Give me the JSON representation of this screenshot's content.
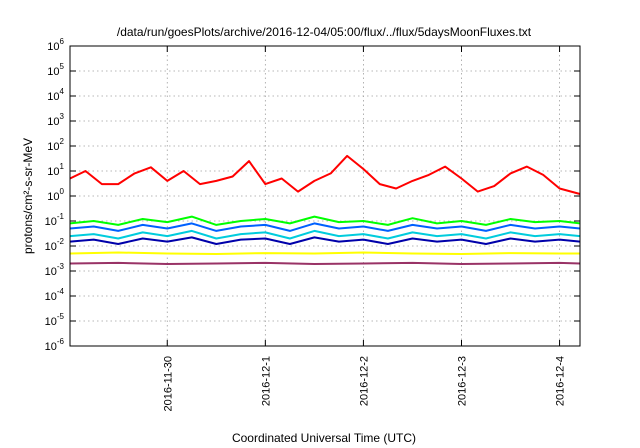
{
  "chart_data": {
    "type": "line",
    "title": "/data/run/goesPlots/archive/2016-12-04/05:00/flux/../flux/5daysMoonFluxes.txt",
    "xlabel": "Coordinated Universal Time (UTC)",
    "ylabel": "protons/cm²-s-sr-MeV",
    "y_scale": "log",
    "ylim": [
      1e-06,
      1000000.0
    ],
    "y_ticks": [
      {
        "value": 1e-06,
        "base": "10",
        "exp": "-6"
      },
      {
        "value": 1e-05,
        "base": "10",
        "exp": "-5"
      },
      {
        "value": 0.0001,
        "base": "10",
        "exp": "-4"
      },
      {
        "value": 0.001,
        "base": "10",
        "exp": "-3"
      },
      {
        "value": 0.01,
        "base": "10",
        "exp": "-2"
      },
      {
        "value": 0.1,
        "base": "10",
        "exp": "-1"
      },
      {
        "value": 1,
        "base": "10",
        "exp": "0"
      },
      {
        "value": 10,
        "base": "10",
        "exp": "1"
      },
      {
        "value": 100,
        "base": "10",
        "exp": "2"
      },
      {
        "value": 1000,
        "base": "10",
        "exp": "3"
      },
      {
        "value": 10000,
        "base": "10",
        "exp": "4"
      },
      {
        "value": 100000,
        "base": "10",
        "exp": "5"
      },
      {
        "value": 1000000,
        "base": "10",
        "exp": "6"
      }
    ],
    "xlim": [
      "2016-11-29T00:12",
      "2016-12-04T05:00"
    ],
    "x_ticks": [
      {
        "value": "2016-11-30T00:00",
        "label": "2016-11-30"
      },
      {
        "value": "2016-12-01T00:00",
        "label": "2016-12-1"
      },
      {
        "value": "2016-12-02T00:00",
        "label": "2016-12-2"
      },
      {
        "value": "2016-12-03T00:00",
        "label": "2016-12-3"
      },
      {
        "value": "2016-12-04T00:00",
        "label": "2016-12-4"
      }
    ],
    "grid": true,
    "legend": "none",
    "series": [
      {
        "color": "#ff0000",
        "x": [
          "2016-11-29T00:12",
          "2016-11-29T04:00",
          "2016-11-29T08:00",
          "2016-11-29T12:00",
          "2016-11-29T16:00",
          "2016-11-29T20:00",
          "2016-11-30T00:00",
          "2016-11-30T04:00",
          "2016-11-30T08:00",
          "2016-11-30T12:00",
          "2016-11-30T16:00",
          "2016-11-30T20:00",
          "2016-12-01T00:00",
          "2016-12-01T04:00",
          "2016-12-01T08:00",
          "2016-12-01T12:00",
          "2016-12-01T16:00",
          "2016-12-01T20:00",
          "2016-12-02T00:00",
          "2016-12-02T04:00",
          "2016-12-02T08:00",
          "2016-12-02T12:00",
          "2016-12-02T16:00",
          "2016-12-02T20:00",
          "2016-12-03T00:00",
          "2016-12-03T04:00",
          "2016-12-03T08:00",
          "2016-12-03T12:00",
          "2016-12-03T16:00",
          "2016-12-03T20:00",
          "2016-12-04T00:00",
          "2016-12-04T05:00"
        ],
        "y": [
          5,
          10,
          3,
          3,
          8,
          14,
          4,
          10,
          3,
          4,
          6,
          25,
          3,
          5,
          1.5,
          4,
          8,
          40,
          12,
          3,
          2,
          4,
          7,
          15,
          5,
          1.5,
          2.5,
          8,
          15,
          7,
          2,
          1.2
        ]
      },
      {
        "color": "#00ff00",
        "x": [
          "2016-11-29T00:12",
          "2016-11-29T06:00",
          "2016-11-29T12:00",
          "2016-11-29T18:00",
          "2016-11-30T00:00",
          "2016-11-30T06:00",
          "2016-11-30T12:00",
          "2016-11-30T18:00",
          "2016-12-01T00:00",
          "2016-12-01T06:00",
          "2016-12-01T12:00",
          "2016-12-01T18:00",
          "2016-12-02T00:00",
          "2016-12-02T06:00",
          "2016-12-02T12:00",
          "2016-12-02T18:00",
          "2016-12-03T00:00",
          "2016-12-03T06:00",
          "2016-12-03T12:00",
          "2016-12-03T18:00",
          "2016-12-04T00:00",
          "2016-12-04T05:00"
        ],
        "y": [
          0.08,
          0.1,
          0.07,
          0.12,
          0.09,
          0.15,
          0.07,
          0.1,
          0.12,
          0.08,
          0.15,
          0.09,
          0.1,
          0.07,
          0.13,
          0.08,
          0.1,
          0.07,
          0.12,
          0.09,
          0.1,
          0.08
        ]
      },
      {
        "color": "#0060ff",
        "x": [
          "2016-11-29T00:12",
          "2016-11-29T06:00",
          "2016-11-29T12:00",
          "2016-11-29T18:00",
          "2016-11-30T00:00",
          "2016-11-30T06:00",
          "2016-11-30T12:00",
          "2016-11-30T18:00",
          "2016-12-01T00:00",
          "2016-12-01T06:00",
          "2016-12-01T12:00",
          "2016-12-01T18:00",
          "2016-12-02T00:00",
          "2016-12-02T06:00",
          "2016-12-02T12:00",
          "2016-12-02T18:00",
          "2016-12-03T00:00",
          "2016-12-03T06:00",
          "2016-12-03T12:00",
          "2016-12-03T18:00",
          "2016-12-04T00:00",
          "2016-12-04T05:00"
        ],
        "y": [
          0.05,
          0.06,
          0.04,
          0.07,
          0.05,
          0.08,
          0.04,
          0.06,
          0.07,
          0.04,
          0.08,
          0.05,
          0.06,
          0.04,
          0.07,
          0.05,
          0.06,
          0.04,
          0.07,
          0.05,
          0.06,
          0.05
        ]
      },
      {
        "color": "#00ccdd",
        "x": [
          "2016-11-29T00:12",
          "2016-11-29T06:00",
          "2016-11-29T12:00",
          "2016-11-29T18:00",
          "2016-11-30T00:00",
          "2016-11-30T06:00",
          "2016-11-30T12:00",
          "2016-11-30T18:00",
          "2016-12-01T00:00",
          "2016-12-01T06:00",
          "2016-12-01T12:00",
          "2016-12-01T18:00",
          "2016-12-02T00:00",
          "2016-12-02T06:00",
          "2016-12-02T12:00",
          "2016-12-02T18:00",
          "2016-12-03T00:00",
          "2016-12-03T06:00",
          "2016-12-03T12:00",
          "2016-12-03T18:00",
          "2016-12-04T00:00",
          "2016-12-04T05:00"
        ],
        "y": [
          0.025,
          0.03,
          0.02,
          0.035,
          0.025,
          0.04,
          0.02,
          0.03,
          0.035,
          0.02,
          0.04,
          0.025,
          0.03,
          0.02,
          0.035,
          0.025,
          0.03,
          0.02,
          0.035,
          0.025,
          0.03,
          0.025
        ]
      },
      {
        "color": "#0000aa",
        "x": [
          "2016-11-29T00:12",
          "2016-11-29T06:00",
          "2016-11-29T12:00",
          "2016-11-29T18:00",
          "2016-11-30T00:00",
          "2016-11-30T06:00",
          "2016-11-30T12:00",
          "2016-11-30T18:00",
          "2016-12-01T00:00",
          "2016-12-01T06:00",
          "2016-12-01T12:00",
          "2016-12-01T18:00",
          "2016-12-02T00:00",
          "2016-12-02T06:00",
          "2016-12-02T12:00",
          "2016-12-02T18:00",
          "2016-12-03T00:00",
          "2016-12-03T06:00",
          "2016-12-03T12:00",
          "2016-12-03T18:00",
          "2016-12-04T00:00",
          "2016-12-04T05:00"
        ],
        "y": [
          0.015,
          0.018,
          0.012,
          0.02,
          0.015,
          0.022,
          0.012,
          0.018,
          0.02,
          0.012,
          0.022,
          0.015,
          0.018,
          0.012,
          0.02,
          0.015,
          0.018,
          0.012,
          0.02,
          0.015,
          0.018,
          0.015
        ]
      },
      {
        "color": "#ffff00",
        "x": [
          "2016-11-29T00:12",
          "2016-11-29T12:00",
          "2016-11-30T00:00",
          "2016-11-30T12:00",
          "2016-12-01T00:00",
          "2016-12-01T12:00",
          "2016-12-02T00:00",
          "2016-12-02T12:00",
          "2016-12-03T00:00",
          "2016-12-03T12:00",
          "2016-12-04T00:00",
          "2016-12-04T05:00"
        ],
        "y": [
          0.005,
          0.0055,
          0.005,
          0.0048,
          0.0052,
          0.005,
          0.0055,
          0.005,
          0.0048,
          0.0052,
          0.005,
          0.005
        ]
      },
      {
        "color": "#993366",
        "x": [
          "2016-11-29T00:12",
          "2016-11-29T12:00",
          "2016-11-30T00:00",
          "2016-11-30T12:00",
          "2016-12-01T00:00",
          "2016-12-01T12:00",
          "2016-12-02T00:00",
          "2016-12-02T12:00",
          "2016-12-03T00:00",
          "2016-12-03T12:00",
          "2016-12-04T00:00",
          "2016-12-04T05:00"
        ],
        "y": [
          0.002,
          0.0021,
          0.0019,
          0.002,
          0.0021,
          0.0019,
          0.002,
          0.0021,
          0.0019,
          0.002,
          0.0021,
          0.002
        ]
      }
    ]
  }
}
